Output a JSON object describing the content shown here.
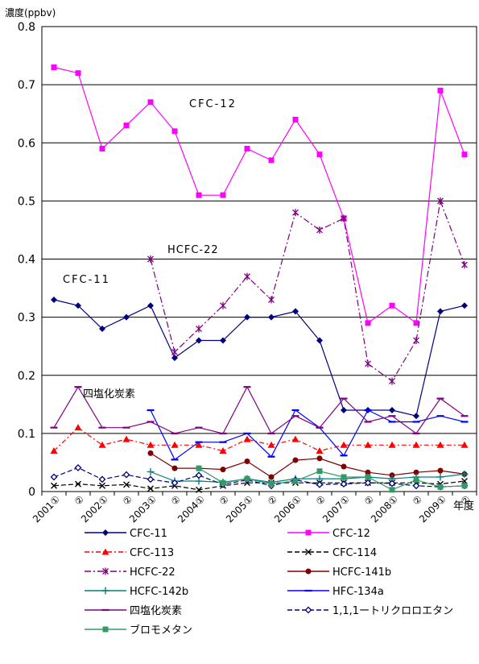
{
  "chart_data": {
    "type": "line",
    "ylabel": "濃度(ppbv)",
    "xlabel": "年度",
    "ylim": [
      0,
      0.8
    ],
    "yticks": [
      "0",
      "0.1",
      "0.2",
      "0.3",
      "0.4",
      "0.5",
      "0.6",
      "0.7",
      "0.8"
    ],
    "grid": true,
    "legend_position": "bottom",
    "categories": [
      "2001①",
      "②",
      "2002①",
      "②",
      "2003①",
      "②",
      "2004①",
      "②",
      "2005①",
      "②",
      "2006①",
      "②",
      "2007①",
      "②",
      "2008①",
      "②",
      "2009①",
      "②"
    ],
    "xticks": [
      "2001①",
      "②",
      "2002①",
      "②",
      "2003①",
      "②",
      "2004①",
      "②",
      "2005①",
      "②",
      "2006①",
      "②",
      "2007①",
      "②",
      "2008①",
      "②",
      "2009①",
      "②"
    ],
    "annotations": [
      "CFC-12",
      "HCFC-22",
      "CFC-11",
      "四塩化炭素"
    ],
    "series": [
      {
        "name": "CFC-11",
        "color": "#00007f",
        "dash": "",
        "marker": "diamond",
        "values": [
          0.33,
          0.32,
          0.28,
          0.3,
          0.32,
          0.23,
          0.26,
          0.26,
          0.3,
          0.3,
          0.31,
          0.26,
          0.14,
          0.14,
          0.14,
          0.13,
          0.31,
          0.32
        ]
      },
      {
        "name": "CFC-12",
        "color": "#ff00ff",
        "dash": "",
        "marker": "square",
        "values": [
          0.73,
          0.72,
          0.59,
          0.63,
          0.67,
          0.62,
          0.51,
          0.51,
          0.59,
          0.57,
          0.64,
          0.58,
          0.47,
          0.29,
          0.32,
          0.29,
          0.69,
          0.58
        ]
      },
      {
        "name": "CFC-113",
        "color": "#ff0000",
        "dash": "6,3,2,3",
        "marker": "triangle",
        "values": [
          0.07,
          0.11,
          0.08,
          0.09,
          0.08,
          0.08,
          0.08,
          0.07,
          0.09,
          0.08,
          0.09,
          0.07,
          0.08,
          0.08,
          0.08,
          0.08,
          0.08,
          0.08
        ]
      },
      {
        "name": "CFC-114",
        "color": "#000000",
        "dash": "6,3",
        "marker": "x",
        "values": [
          0.01,
          0.013,
          0.01,
          0.012,
          0.005,
          0.01,
          0.003,
          0.01,
          0.015,
          0.015,
          0.015,
          0.015,
          0.015,
          0.015,
          0.015,
          0.015,
          0.013,
          0.018
        ]
      },
      {
        "name": "HCFC-22",
        "color": "#7f007f",
        "dash": "8,3,2,3",
        "marker": "star",
        "values": [
          null,
          null,
          null,
          null,
          0.4,
          0.24,
          0.28,
          0.32,
          0.37,
          0.33,
          0.48,
          0.45,
          0.47,
          0.22,
          0.19,
          0.26,
          0.5,
          0.39
        ]
      },
      {
        "name": "HCFC-141b",
        "color": "#7f0000",
        "dash": "",
        "marker": "circle",
        "values": [
          null,
          null,
          null,
          null,
          0.066,
          0.04,
          0.04,
          0.038,
          0.052,
          0.025,
          0.054,
          0.057,
          0.043,
          0.033,
          0.028,
          0.033,
          0.036,
          0.03
        ]
      },
      {
        "name": "HCFC-142b",
        "color": "#008080",
        "dash": "",
        "marker": "plus",
        "values": [
          null,
          null,
          null,
          null,
          0.034,
          0.018,
          0.018,
          0.016,
          0.022,
          0.016,
          0.022,
          0.022,
          0.022,
          0.025,
          0.022,
          0.025,
          0.025,
          0.03
        ]
      },
      {
        "name": "HFC-134a",
        "color": "#0000ff",
        "dash": "",
        "marker": "dash",
        "values": [
          null,
          null,
          null,
          null,
          0.14,
          0.055,
          0.085,
          0.085,
          0.1,
          0.06,
          0.14,
          0.11,
          0.062,
          0.14,
          0.12,
          0.12,
          0.13,
          0.12
        ]
      },
      {
        "name": "四塩化炭素",
        "color": "#800080",
        "dash": "",
        "marker": "dash",
        "values": [
          0.11,
          0.18,
          0.11,
          0.11,
          0.12,
          0.1,
          0.11,
          0.1,
          0.18,
          0.1,
          0.13,
          0.11,
          0.16,
          0.12,
          0.13,
          0.1,
          0.16,
          0.13
        ]
      },
      {
        "name": "1,1,1ートリクロロエタン",
        "color": "#00007f",
        "dash": "6,3",
        "marker": "open-diamond",
        "values": [
          0.025,
          0.041,
          0.021,
          0.029,
          0.021,
          0.015,
          0.028,
          0.012,
          0.02,
          0.01,
          0.02,
          0.012,
          0.013,
          0.015,
          0.014,
          0.01,
          0.008,
          0.01
        ]
      },
      {
        "name": "ブロモメタン",
        "color": "#339966",
        "dash": "",
        "marker": "square",
        "values": [
          null,
          null,
          null,
          null,
          null,
          null,
          0.04,
          0.015,
          0.022,
          0.013,
          0.018,
          0.035,
          0.025,
          0.025,
          0.003,
          0.02,
          0.008,
          0.01
        ]
      }
    ]
  }
}
